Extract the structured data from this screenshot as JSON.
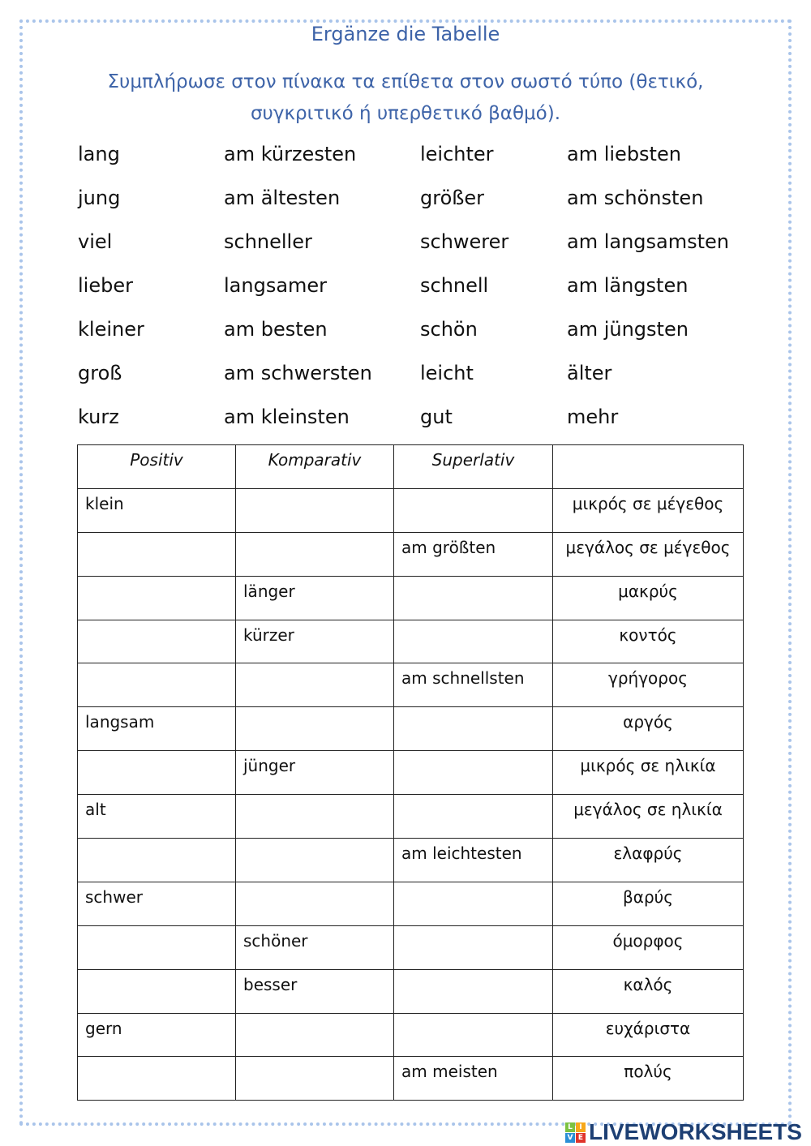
{
  "title": "Ergänze die Tabelle",
  "instruction": [
    "Συμπλήρωσε στον πίνακα τα επίθετα στον σωστό τύπο (θετικό,",
    "συγκριτικό ή υπερθετικό βαθμό)."
  ],
  "word_bank": [
    [
      "lang",
      "am kürzesten",
      "leichter",
      "am liebsten"
    ],
    [
      "jung",
      "am ältesten",
      "größer",
      "am schönsten"
    ],
    [
      "viel",
      "schneller",
      "schwerer",
      "am langsamsten"
    ],
    [
      "lieber",
      "langsamer",
      "schnell",
      "am längsten"
    ],
    [
      "kleiner",
      "am besten",
      "schön",
      "am jüngsten"
    ],
    [
      "groß",
      "am schwersten",
      "leicht",
      "älter"
    ],
    [
      "kurz",
      "am kleinsten",
      "gut",
      "mehr"
    ]
  ],
  "table": {
    "headers": [
      "Positiv",
      "Komparativ",
      "Superlativ",
      ""
    ],
    "rows": [
      [
        "klein",
        "",
        "",
        "μικρός σε μέγεθος"
      ],
      [
        "",
        "",
        "am größten",
        "μεγάλος σε μέγεθος"
      ],
      [
        "",
        "länger",
        "",
        "μακρύς"
      ],
      [
        "",
        "kürzer",
        "",
        "κοντός"
      ],
      [
        "",
        "",
        "am schnellsten",
        "γρήγορος"
      ],
      [
        "langsam",
        "",
        "",
        "αργός"
      ],
      [
        "",
        "jünger",
        "",
        "μικρός σε ηλικία"
      ],
      [
        "alt",
        "",
        "",
        "μεγάλος σε ηλικία"
      ],
      [
        "",
        "",
        "am leichtesten",
        "ελαφρύς"
      ],
      [
        "schwer",
        "",
        "",
        "βαρύς"
      ],
      [
        "",
        "schöner",
        "",
        "όμορφος"
      ],
      [
        "",
        "besser",
        "",
        "καλός"
      ],
      [
        "gern",
        "",
        "",
        "ευχάριστα"
      ],
      [
        "",
        "",
        "am meisten",
        "πολύς"
      ]
    ]
  },
  "logo": {
    "text": "LIVEWORKSHEETS",
    "badge": [
      "L",
      "I",
      "V",
      "E"
    ]
  },
  "colors": {
    "heading": "#3d63a8",
    "border": "#a9c4ea",
    "logo": "#1d3f73"
  }
}
